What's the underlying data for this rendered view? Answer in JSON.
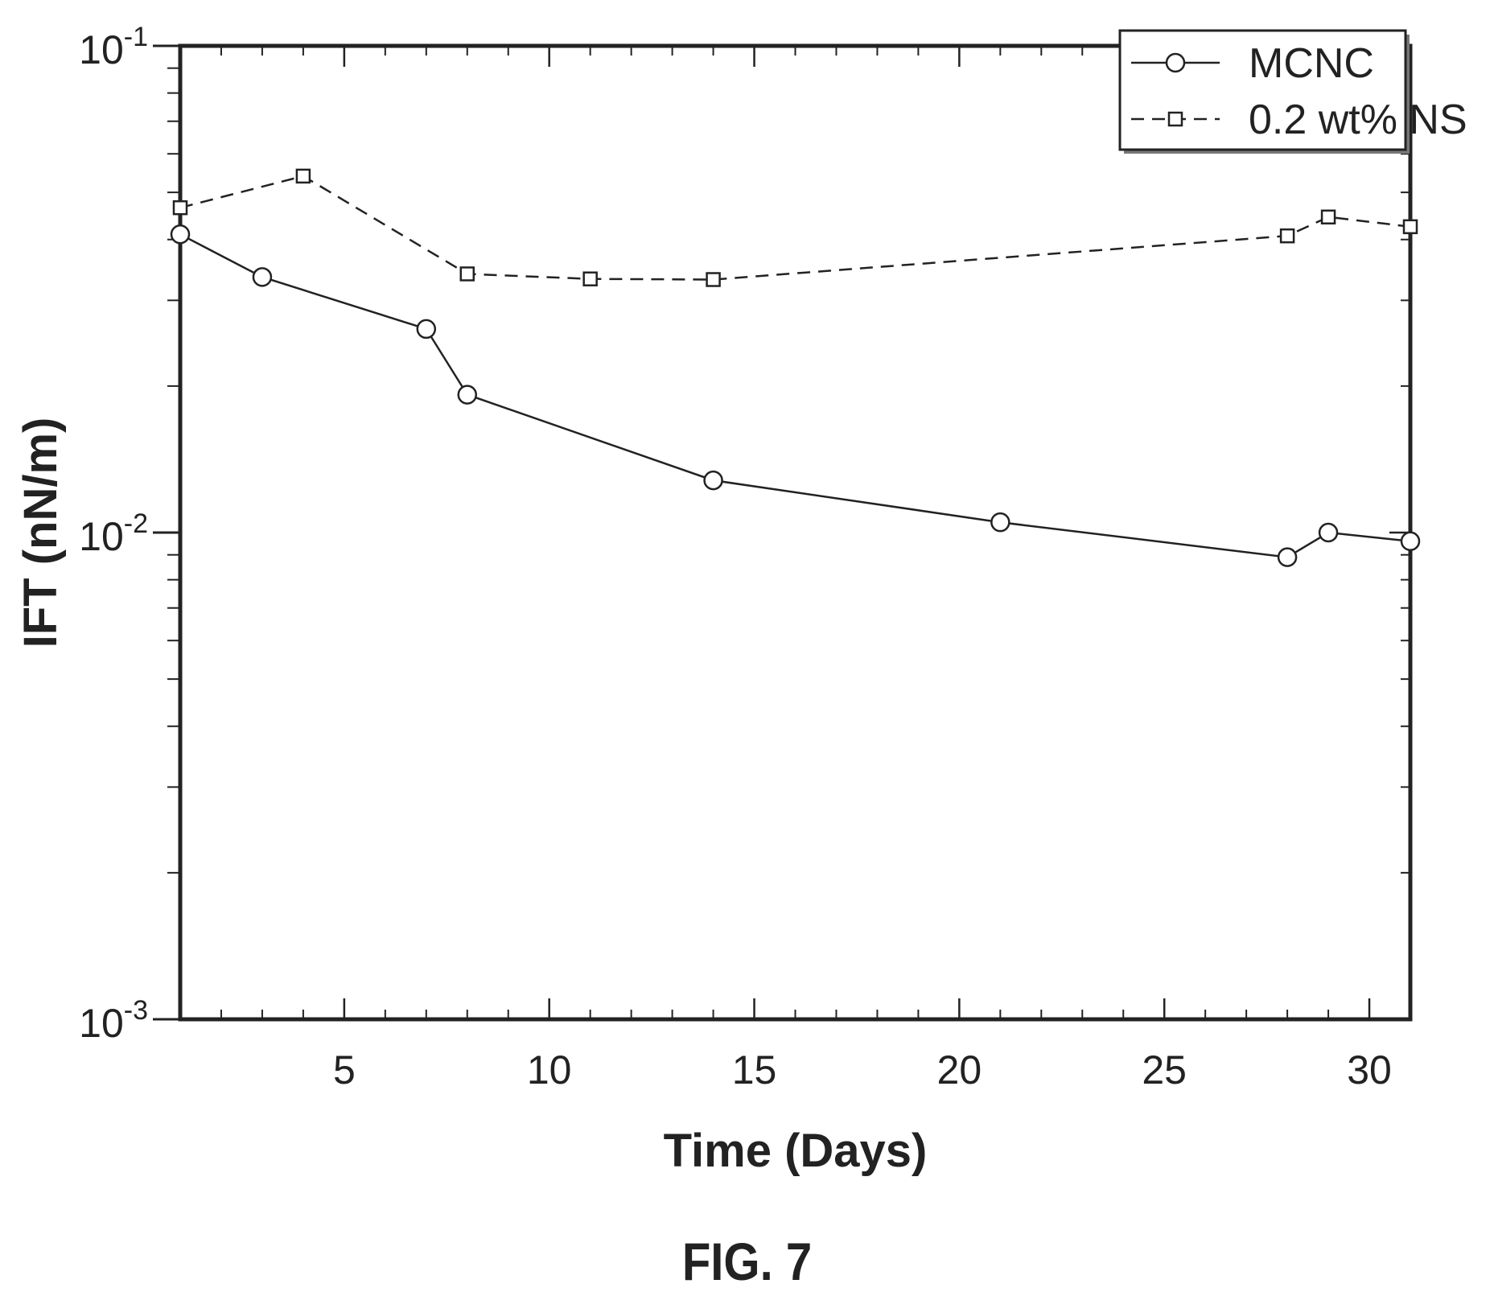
{
  "figure": {
    "caption": "FIG. 7"
  },
  "chart_data": {
    "type": "line",
    "xlabel": "Time (Days)",
    "ylabel": "IFT (nN/m)",
    "xscale": "linear",
    "yscale": "log",
    "xlim": [
      1,
      31
    ],
    "ylim": [
      0.001,
      0.1
    ],
    "x_ticks": [
      5,
      10,
      15,
      20,
      25,
      30
    ],
    "x_tick_labels": [
      "5",
      "10",
      "15",
      "20",
      "25",
      "30"
    ],
    "y_tick_labels": [
      {
        "value": 0.1,
        "base": "10",
        "exp": "-1"
      },
      {
        "value": 0.01,
        "base": "10",
        "exp": "-2"
      },
      {
        "value": 0.001,
        "base": "10",
        "exp": "-3"
      }
    ],
    "grid": false,
    "legend_position": "top-right",
    "series": [
      {
        "name": "MCNC",
        "marker": "circle",
        "line_style": "solid",
        "color": "#222222",
        "x": [
          1,
          3,
          7,
          8,
          14,
          21,
          28,
          29,
          31
        ],
        "y": [
          0.041,
          0.0335,
          0.0262,
          0.0192,
          0.0128,
          0.0105,
          0.0089,
          0.01,
          0.0096
        ]
      },
      {
        "name": "0.2 wt% NS",
        "marker": "square",
        "line_style": "dashed",
        "color": "#222222",
        "x": [
          1,
          4,
          8,
          11,
          14,
          28,
          29,
          31
        ],
        "y": [
          0.0465,
          0.054,
          0.034,
          0.0332,
          0.0331,
          0.0407,
          0.0445,
          0.0425
        ]
      }
    ]
  }
}
